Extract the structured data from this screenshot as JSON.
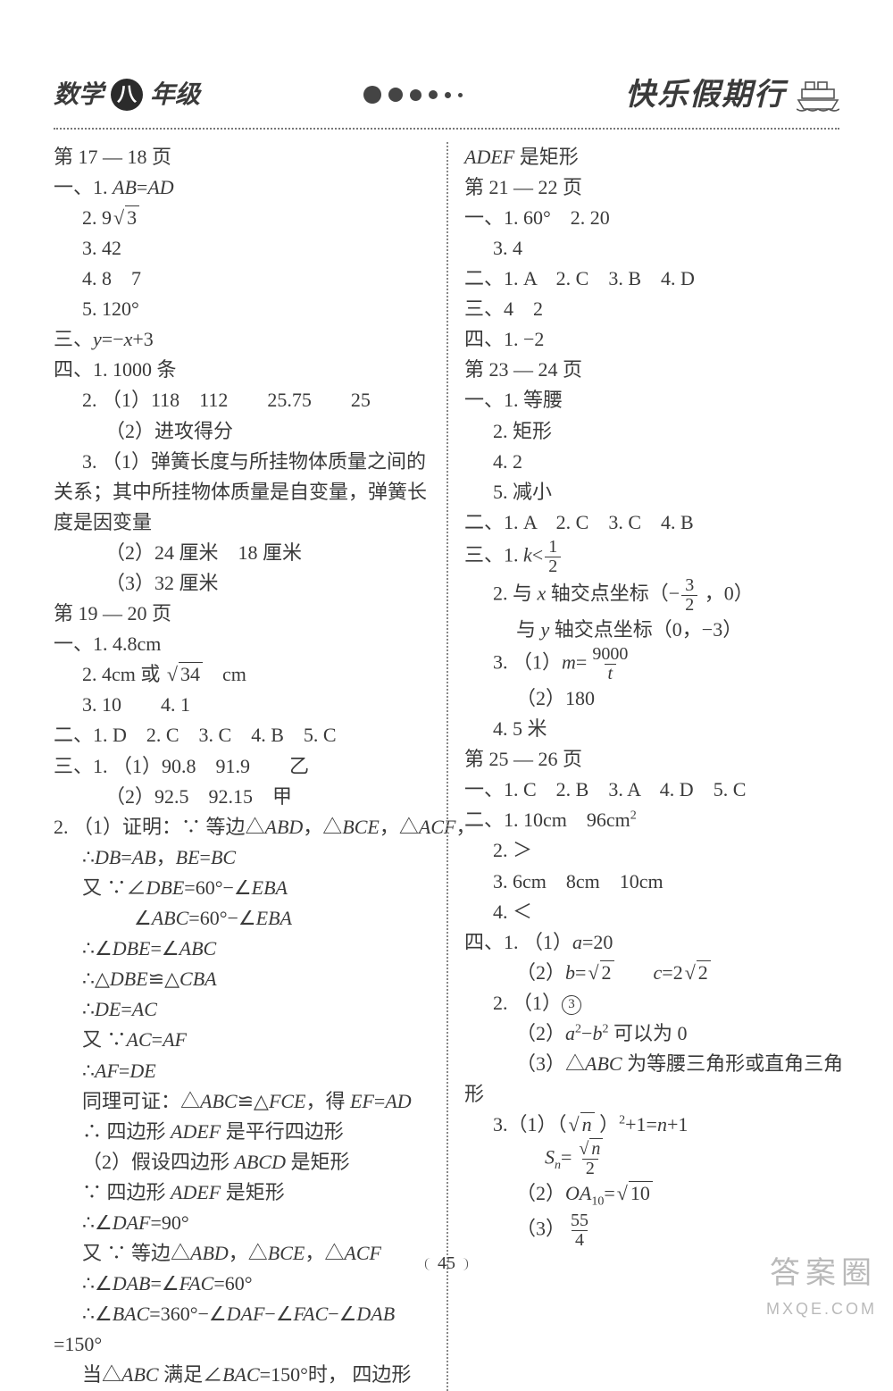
{
  "header": {
    "subject": "数学",
    "grade_circle": "八",
    "grade_suffix": "年级",
    "right_title": "快乐假期行",
    "dot_sizes": [
      20,
      16,
      13,
      10,
      7,
      5
    ]
  },
  "page_number": "45",
  "watermark": {
    "line1": "答案圈",
    "line2": "MXQE.COM"
  },
  "left": [
    {
      "cls": "",
      "t": "第 17 — 18 页"
    },
    {
      "cls": "",
      "html": "一、1. <span class='italic'>AB</span>=<span class='italic'>AD</span>"
    },
    {
      "cls": "indent1",
      "html": "2. 9<span class='sqrt'>√<span class='rad'>3</span></span>"
    },
    {
      "cls": "indent1",
      "t": "3. 42"
    },
    {
      "cls": "indent1",
      "t": "4. 8　7"
    },
    {
      "cls": "indent1",
      "t": "5. 120°"
    },
    {
      "cls": "",
      "html": "三、<span class='italic'>y</span>=−<span class='italic'>x</span>+3"
    },
    {
      "cls": "",
      "t": "四、1. 1000 条"
    },
    {
      "cls": "indent1",
      "t": "2. （1）118　112　　25.75　　25"
    },
    {
      "cls": "indent2",
      "t": "（2）进攻得分"
    },
    {
      "cls": "indent1",
      "t": "3. （1）弹簧长度与所挂物体质量之间的"
    },
    {
      "cls": "",
      "t": "关系；其中所挂物体质量是自变量，弹簧长"
    },
    {
      "cls": "",
      "t": "度是因变量"
    },
    {
      "cls": "indent2",
      "t": "（2）24 厘米　18 厘米"
    },
    {
      "cls": "indent2",
      "t": "（3）32 厘米"
    },
    {
      "cls": "",
      "t": "第 19 — 20 页"
    },
    {
      "cls": "",
      "t": "一、1. 4.8cm"
    },
    {
      "cls": "indent1",
      "html": "2. 4cm 或 <span class='sqrt'>√<span class='rad'>34</span></span>　cm"
    },
    {
      "cls": "indent1",
      "t": "3. 10　　4. 1"
    },
    {
      "cls": "",
      "t": "二、1. D　2. C　3. C　4. B　5. C"
    },
    {
      "cls": "",
      "t": "三、1. （1）90.8　91.9　　乙"
    },
    {
      "cls": "indent2",
      "t": "（2）92.5　92.15　甲"
    },
    {
      "cls": "",
      "html": "2. （1）证明：∵ 等边△<span class='italic'>ABD</span>，△<span class='italic'>BCE</span>，△<span class='italic'>ACF</span>，"
    },
    {
      "cls": "indent1",
      "html": "∴<span class='italic'>DB</span>=<span class='italic'>AB</span>，<span class='italic'>BE</span>=<span class='italic'>BC</span>"
    },
    {
      "cls": "indent1",
      "html": "又 ∵∠<span class='italic'>DBE</span>=60°−∠<span class='italic'>EBA</span>"
    },
    {
      "cls": "indent3",
      "html": "∠<span class='italic'>ABC</span>=60°−∠<span class='italic'>EBA</span>"
    },
    {
      "cls": "indent1",
      "html": "∴∠<span class='italic'>DBE</span>=∠<span class='italic'>ABC</span>"
    },
    {
      "cls": "indent1",
      "html": "∴△<span class='italic'>DBE</span>≌△<span class='italic'>CBA</span>"
    },
    {
      "cls": "indent1",
      "html": "∴<span class='italic'>DE</span>=<span class='italic'>AC</span>"
    },
    {
      "cls": "indent1",
      "html": "又 ∵<span class='italic'>AC</span>=<span class='italic'>AF</span>"
    },
    {
      "cls": "indent1",
      "html": "∴<span class='italic'>AF</span>=<span class='italic'>DE</span>"
    },
    {
      "cls": "indent1",
      "html": "同理可证：△<span class='italic'>ABC</span>≌△<span class='italic'>FCE</span>，得 <span class='italic'>EF</span>=<span class='italic'>AD</span>"
    },
    {
      "cls": "indent1",
      "html": "∴ 四边形 <span class='italic'>ADEF</span> 是平行四边形"
    },
    {
      "cls": "indent1",
      "html": "（2）假设四边形 <span class='italic'>ABCD</span> 是矩形"
    },
    {
      "cls": "indent1",
      "html": "∵ 四边形 <span class='italic'>ADEF</span> 是矩形"
    },
    {
      "cls": "indent1",
      "html": "∴∠<span class='italic'>DAF</span>=90°"
    },
    {
      "cls": "indent1",
      "html": "又 ∵ 等边△<span class='italic'>ABD</span>，△<span class='italic'>BCE</span>，△<span class='italic'>ACF</span>"
    },
    {
      "cls": "indent1",
      "html": "∴∠<span class='italic'>DAB</span>=∠<span class='italic'>FAC</span>=60°"
    },
    {
      "cls": "indent1",
      "html": "∴∠<span class='italic'>BAC</span>=360°−∠<span class='italic'>DAF</span>−∠<span class='italic'>FAC</span>−∠<span class='italic'>DAB</span>"
    },
    {
      "cls": "",
      "t": "=150°"
    },
    {
      "cls": "indent1",
      "html": "当△<span class='italic'>ABC</span> 满足∠<span class='italic'>BAC</span>=150°时， 四边形"
    }
  ],
  "right": [
    {
      "cls": "",
      "html": "<span class='italic'>ADEF</span> 是矩形"
    },
    {
      "cls": "",
      "t": "第 21 — 22 页"
    },
    {
      "cls": "",
      "t": "一、1. 60°　2. 20"
    },
    {
      "cls": "indent1",
      "t": "3. 4"
    },
    {
      "cls": "",
      "t": "二、1. A　2. C　3. B　4. D"
    },
    {
      "cls": "",
      "t": "三、4　2"
    },
    {
      "cls": "",
      "t": "四、1. −2"
    },
    {
      "cls": "",
      "t": "第 23 — 24 页"
    },
    {
      "cls": "",
      "t": "一、1. 等腰"
    },
    {
      "cls": "indent1",
      "t": "2. 矩形"
    },
    {
      "cls": "indent1",
      "t": "4. 2"
    },
    {
      "cls": "indent1",
      "t": "5. 减小"
    },
    {
      "cls": "",
      "t": "二、1. A　2. C　3. C　4. B"
    },
    {
      "cls": "",
      "html": "三、1. <span class='italic'>k</span>&lt;<span class='frac'><span class='num'>1</span><span class='den'>2</span></span>"
    },
    {
      "cls": "indent1",
      "html": "2. 与 <span class='italic'>x</span> 轴交点坐标（−<span class='frac'><span class='num'>3</span><span class='den'>2</span></span> ，0）"
    },
    {
      "cls": "indent2",
      "html": "与 <span class='italic'>y</span> 轴交点坐标（0，−3）"
    },
    {
      "cls": "indent1",
      "html": "3. （1）<span class='italic'>m</span>=<span class='frac'><span class='num'>9000</span><span class='den italic'>t</span></span>"
    },
    {
      "cls": "indent2",
      "t": "（2）180"
    },
    {
      "cls": "indent1",
      "t": "4. 5 米"
    },
    {
      "cls": "",
      "t": "第 25 — 26 页"
    },
    {
      "cls": "",
      "t": "一、1. C　2. B　3. A　4. D　5. C"
    },
    {
      "cls": "",
      "html": "二、1. 10cm　96cm<span class='sup'>2</span>"
    },
    {
      "cls": "indent1",
      "t": "2. ＞"
    },
    {
      "cls": "indent1",
      "t": "3. 6cm　8cm　10cm"
    },
    {
      "cls": "indent1",
      "t": "4. ＜"
    },
    {
      "cls": "",
      "html": "四、1. （1）<span class='italic'>a</span>=20"
    },
    {
      "cls": "indent2",
      "html": "（2）<span class='italic'>b</span>=<span class='sqrt'>√<span class='rad'>2</span></span>　　<span class='italic'>c</span>=2<span class='sqrt'>√<span class='rad'>2</span></span>"
    },
    {
      "cls": "indent1",
      "html": "2. （1）<span class='circled'>3</span>"
    },
    {
      "cls": "indent2",
      "html": "（2）<span class='italic'>a</span><span class='sup'>2</span>−<span class='italic'>b</span><span class='sup'>2</span> 可以为 0"
    },
    {
      "cls": "indent2",
      "html": "（3）△<span class='italic'>ABC</span> 为等腰三角形或直角三角"
    },
    {
      "cls": "",
      "t": "形"
    },
    {
      "cls": "indent1",
      "html": "3.（1）（<span class='sqrt'>√<span class='rad'><span class='italic'>n</span></span></span> ）<span class='sup'>2</span>+1=<span class='italic'>n</span>+1"
    },
    {
      "cls": "indent3",
      "html": "<span class='italic'>S</span><span class='sub italic'>n</span>=<span class='frac'><span class='num'><span class='sqrt'>√<span class='rad'><span class='italic'>n</span></span></span></span><span class='den'>2</span></span>"
    },
    {
      "cls": "indent2",
      "html": "（2）<span class='italic'>OA</span><span class='sub'>10</span>=<span class='sqrt'>√<span class='rad'>10</span></span>"
    },
    {
      "cls": "indent2",
      "html": "（3）<span class='frac'><span class='num'>55</span><span class='den'>4</span></span>"
    }
  ]
}
